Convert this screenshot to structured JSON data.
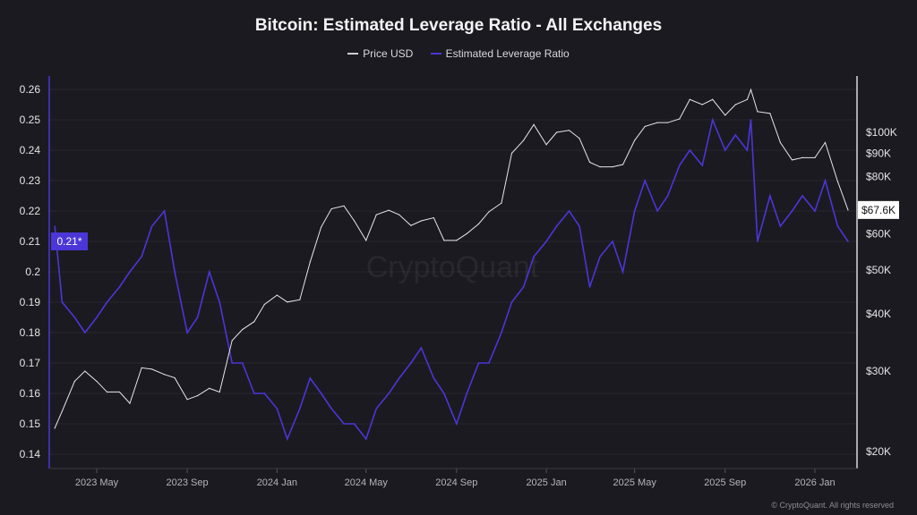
{
  "chart_data": {
    "type": "line",
    "title": "Bitcoin: Estimated Leverage Ratio - All Exchanges",
    "watermark": "CryptoQuant",
    "copyright": "© CryptoQuant. All rights reserved",
    "legend_placement": "top-center",
    "grid": true,
    "x_tick_labels": [
      "2023 May",
      "2023 Sep",
      "2024 Jan",
      "2024 May",
      "2024 Sep",
      "2025 Jan",
      "2025 May",
      "2025 Sep",
      "2026 Jan"
    ],
    "x_ticks": [
      "2023-05-01",
      "2023-09-01",
      "2024-01-01",
      "2024-05-01",
      "2024-09-01",
      "2025-01-01",
      "2025-05-01",
      "2025-09-01",
      "2026-01-01"
    ],
    "xlim": [
      "2023-03-05",
      "2026-02-20"
    ],
    "left_axis": {
      "scale": "linear",
      "ylim": [
        0.135,
        0.265
      ],
      "ticks": [
        0.14,
        0.15,
        0.16,
        0.17,
        0.18,
        0.19,
        0.2,
        0.21,
        0.22,
        0.23,
        0.24,
        0.25,
        0.26
      ],
      "current_label": "0.21*"
    },
    "right_axis": {
      "scale": "log",
      "ylim": [
        19000,
        130000
      ],
      "ticks": [
        20000,
        30000,
        40000,
        50000,
        60000,
        80000,
        90000,
        100000
      ],
      "tick_labels": [
        "$20K",
        "$30K",
        "$40K",
        "$50K",
        "$60K",
        "$80K",
        "$90K",
        "$100K"
      ],
      "current_label": "$67.6K"
    },
    "colors": {
      "price": "#e6e6ea",
      "leverage": "#4b36d8",
      "background": "#1b1a20"
    },
    "x": [
      "2023-03-05",
      "2023-03-15",
      "2023-04-01",
      "2023-04-15",
      "2023-05-01",
      "2023-05-15",
      "2023-06-01",
      "2023-06-15",
      "2023-07-01",
      "2023-07-15",
      "2023-08-01",
      "2023-08-15",
      "2023-09-01",
      "2023-09-15",
      "2023-10-01",
      "2023-10-15",
      "2023-11-01",
      "2023-11-15",
      "2023-12-01",
      "2023-12-15",
      "2024-01-01",
      "2024-01-15",
      "2024-02-01",
      "2024-02-15",
      "2024-03-01",
      "2024-03-15",
      "2024-04-01",
      "2024-04-15",
      "2024-05-01",
      "2024-05-15",
      "2024-06-01",
      "2024-06-15",
      "2024-07-01",
      "2024-07-15",
      "2024-08-01",
      "2024-08-15",
      "2024-09-01",
      "2024-09-15",
      "2024-10-01",
      "2024-10-15",
      "2024-11-01",
      "2024-11-15",
      "2024-12-01",
      "2024-12-15",
      "2025-01-01",
      "2025-01-15",
      "2025-02-01",
      "2025-02-15",
      "2025-03-01",
      "2025-03-15",
      "2025-04-01",
      "2025-04-15",
      "2025-05-01",
      "2025-05-15",
      "2025-06-01",
      "2025-06-15",
      "2025-07-01",
      "2025-07-15",
      "2025-08-01",
      "2025-08-15",
      "2025-09-01",
      "2025-09-15",
      "2025-10-01",
      "2025-10-06",
      "2025-10-15",
      "2025-11-01",
      "2025-11-15",
      "2025-12-01",
      "2025-12-15",
      "2026-01-01",
      "2026-01-15",
      "2026-02-01",
      "2026-02-15"
    ],
    "series": [
      {
        "name": "Price USD",
        "axis": "right",
        "values": [
          22500,
          24500,
          28500,
          30000,
          28500,
          27000,
          27000,
          25500,
          30500,
          30300,
          29500,
          29000,
          26000,
          26500,
          27500,
          27000,
          35000,
          37000,
          38500,
          42000,
          44000,
          42500,
          43000,
          52000,
          62000,
          68000,
          69000,
          64000,
          58000,
          66000,
          67500,
          66000,
          62500,
          64000,
          65000,
          58000,
          58000,
          60000,
          63000,
          67000,
          70000,
          90000,
          96000,
          104000,
          94000,
          100000,
          101000,
          97000,
          86000,
          84000,
          84000,
          85000,
          96000,
          103000,
          105000,
          105000,
          107000,
          118000,
          115000,
          118000,
          109000,
          115000,
          118000,
          124000,
          111000,
          110000,
          95000,
          87000,
          88000,
          88000,
          95000,
          78000,
          67600
        ]
      },
      {
        "name": "Estimated Leverage Ratio",
        "axis": "left",
        "values": [
          0.215,
          0.19,
          0.185,
          0.18,
          0.185,
          0.19,
          0.195,
          0.2,
          0.205,
          0.215,
          0.22,
          0.2,
          0.18,
          0.185,
          0.2,
          0.19,
          0.17,
          0.17,
          0.16,
          0.16,
          0.155,
          0.145,
          0.155,
          0.165,
          0.16,
          0.155,
          0.15,
          0.15,
          0.145,
          0.155,
          0.16,
          0.165,
          0.17,
          0.175,
          0.165,
          0.16,
          0.15,
          0.16,
          0.17,
          0.17,
          0.18,
          0.19,
          0.195,
          0.205,
          0.21,
          0.215,
          0.22,
          0.215,
          0.195,
          0.205,
          0.21,
          0.2,
          0.22,
          0.23,
          0.22,
          0.225,
          0.235,
          0.24,
          0.235,
          0.25,
          0.24,
          0.245,
          0.24,
          0.25,
          0.21,
          0.225,
          0.215,
          0.22,
          0.225,
          0.22,
          0.23,
          0.215,
          0.21
        ]
      }
    ]
  }
}
